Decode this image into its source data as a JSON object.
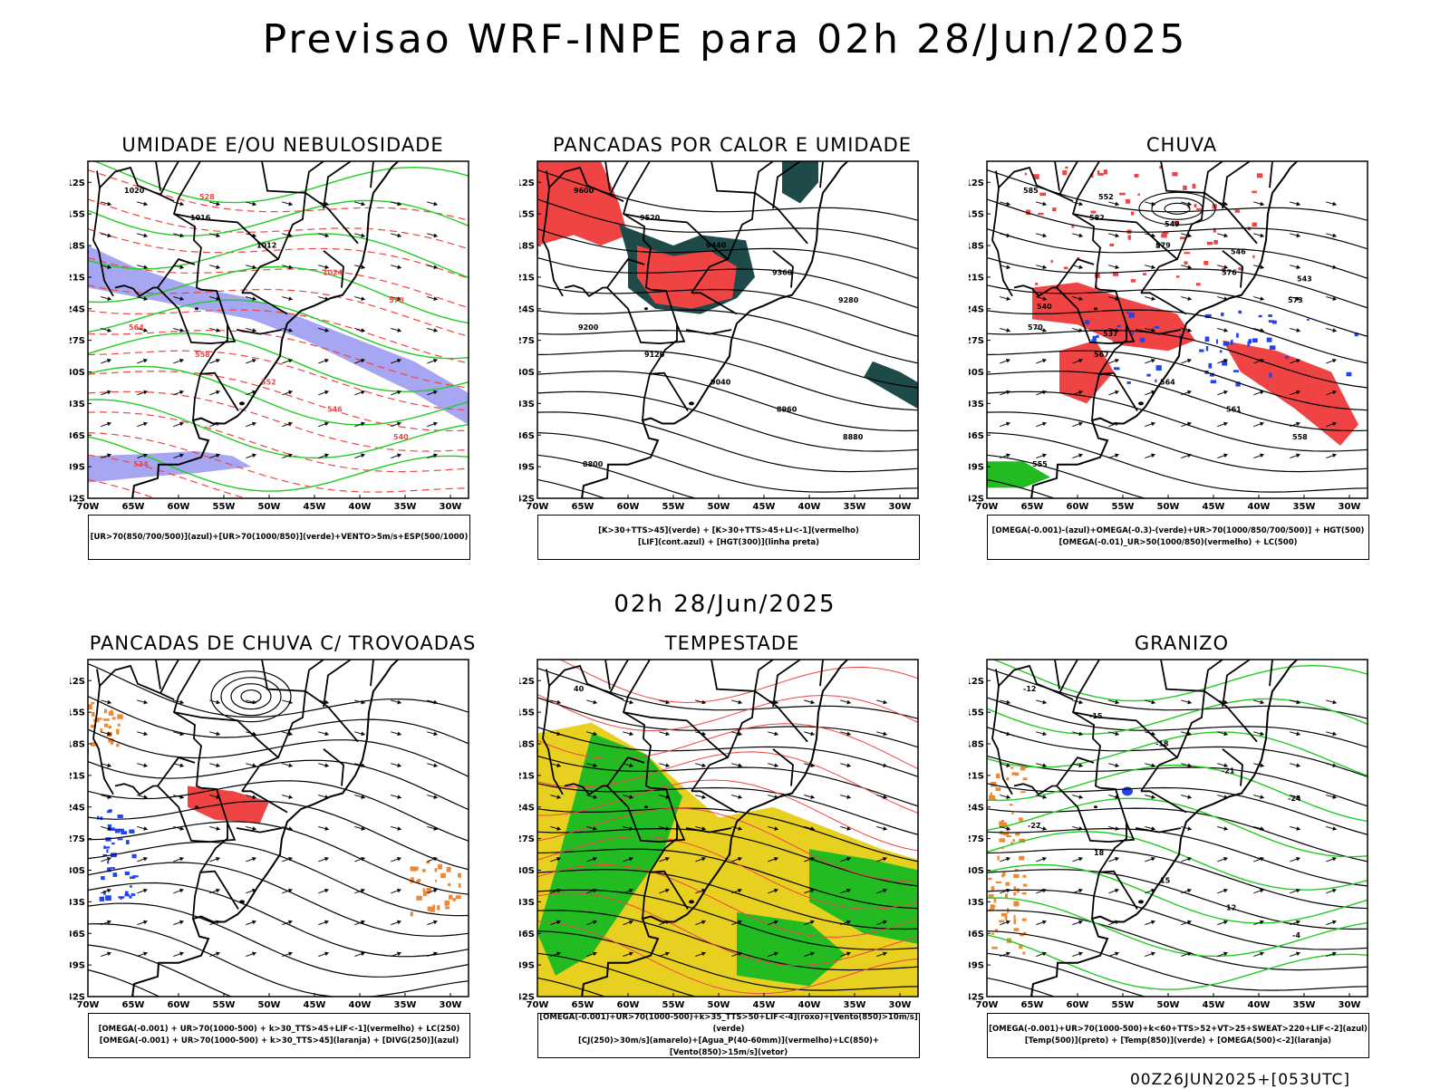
{
  "title": "Previsao WRF-INPE  para 02h 28/Jun/2025",
  "mid_title": "02h 28/Jun/2025",
  "footer": "00Z26JUN2025+[053UTC]",
  "axes": {
    "lat_labels": [
      "12S",
      "15S",
      "18S",
      "21S",
      "24S",
      "27S",
      "30S",
      "33S",
      "36S",
      "39S",
      "42S"
    ],
    "lon_labels": [
      "70W",
      "65W",
      "60W",
      "55W",
      "50W",
      "45W",
      "40W",
      "35W",
      "30W"
    ]
  },
  "colors": {
    "humidity_blue": "#8888ee",
    "green_contour": "#22cc22",
    "red": "#f04444",
    "dark_teal": "#1e4a4a",
    "blue": "#2244ee",
    "orange": "#ee8833",
    "yellow": "#e8d020",
    "green_fill": "#22bb22"
  },
  "panels": [
    {
      "title": "UMIDADE E/OU NEBULOSIDADE",
      "legend": [
        "[UR>70(850/700/500)](azul)+[UR>70(1000/850)](verde)+VENTO>5m/s+ESP(500/1000)"
      ],
      "labels": [
        "1020",
        "1016",
        "1012",
        "1024",
        "570",
        "564",
        "558",
        "552",
        "546",
        "540",
        "534",
        "528"
      ]
    },
    {
      "title": "PANCADAS POR CALOR E UMIDADE",
      "legend": [
        "[K>30+TTS>45](verde) + [K>30+TTS>45+LI<-1](vermelho)",
        "[LIF](cont.azul) + [HGT(300)](linha preta)"
      ],
      "labels": [
        "9600",
        "9520",
        "9440",
        "9360",
        "9280",
        "9200",
        "9120",
        "9040",
        "8960",
        "8880",
        "8800"
      ]
    },
    {
      "title": "CHUVA",
      "legend": [
        "[OMEGA(-0.001)-(azul)+OMEGA(-0.3)-(verde)+UR>70(1000/850/700/500)] + HGT(500)",
        "[OMEGA(-0.01)_UR>50(1000/850)(vermelho) + LC(500)"
      ],
      "labels": [
        "585",
        "582",
        "579",
        "576",
        "573",
        "570",
        "567",
        "564",
        "561",
        "558",
        "555",
        "552",
        "549",
        "546",
        "543",
        "540",
        "537"
      ]
    },
    {
      "title": "PANCADAS DE CHUVA C/ TROVOADAS",
      "legend": [
        "[OMEGA(-0.001) + UR>70(1000-500) + k>30_TTS>45+LIF<-1](vermelho) + LC(250)",
        "[OMEGA(-0.001) + UR>70(1000-500) + k>30_TTS>45](laranja) + [DIVG(250)](azul)"
      ],
      "labels": []
    },
    {
      "title": "TEMPESTADE",
      "legend": [
        "[OMEGA(-0.001)+UR>70(1000-500)+k>35_TTS>50+LIF<-4](roxo)+[Vento(850)>10m/s](verde)",
        "[CJ(250)>30m/s](amarelo)+[Agua_P(40-60mm)](vermelho)+LC(850)+[Vento(850)>15m/s](vetor)"
      ],
      "labels": [
        "40"
      ]
    },
    {
      "title": "GRANIZO",
      "legend": [
        "[OMEGA(-0.001)+UR>70(1000-500)+k<60+TTS>52+VT>25+SWEAT>220+LIF<-2](azul)",
        "[Temp(500)](preto) + [Temp(850)](verde) + [OMEGA(500)<-2](laranja)"
      ],
      "labels": [
        "-12",
        "-15",
        "-18",
        "-21",
        "-24",
        "-27",
        "18",
        "15",
        "12",
        "-4"
      ]
    }
  ]
}
